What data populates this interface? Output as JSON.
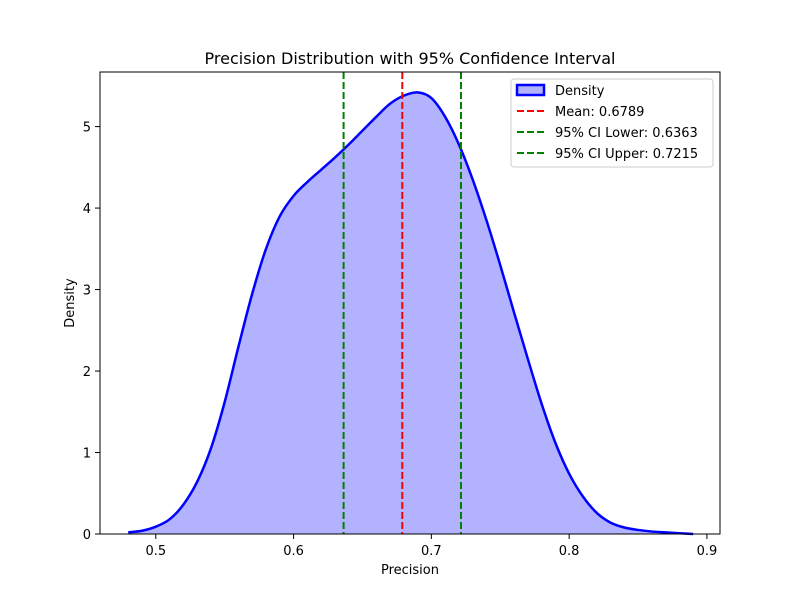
{
  "chart_data": {
    "type": "area",
    "title": "Precision Distribution with 95% Confidence Interval",
    "xlabel": "Precision",
    "ylabel": "Density",
    "xlim": [
      0.4595,
      0.9095
    ],
    "ylim": [
      0,
      5.67
    ],
    "xticks": [
      0.5,
      0.6,
      0.7,
      0.8,
      0.9
    ],
    "xtick_labels": [
      "0.5",
      "0.6",
      "0.7",
      "0.8",
      "0.9"
    ],
    "yticks": [
      0,
      1,
      2,
      3,
      4,
      5
    ],
    "ytick_labels": [
      "0",
      "1",
      "2",
      "3",
      "4",
      "5"
    ],
    "grid": false,
    "legend_position": "upper right",
    "density": {
      "name": "Density",
      "line_color": "#0000ff",
      "fill_color": "#b2b2ff",
      "x": [
        0.48,
        0.49,
        0.5,
        0.51,
        0.52,
        0.53,
        0.54,
        0.55,
        0.56,
        0.57,
        0.58,
        0.59,
        0.6,
        0.61,
        0.62,
        0.63,
        0.64,
        0.65,
        0.66,
        0.67,
        0.68,
        0.69,
        0.7,
        0.71,
        0.72,
        0.73,
        0.74,
        0.75,
        0.76,
        0.77,
        0.78,
        0.79,
        0.8,
        0.81,
        0.82,
        0.83,
        0.84,
        0.85,
        0.86,
        0.87,
        0.88,
        0.89
      ],
      "y": [
        0.02,
        0.04,
        0.09,
        0.18,
        0.36,
        0.64,
        1.05,
        1.62,
        2.3,
        2.95,
        3.5,
        3.9,
        4.15,
        4.32,
        4.47,
        4.62,
        4.78,
        4.95,
        5.12,
        5.28,
        5.38,
        5.42,
        5.35,
        5.12,
        4.78,
        4.35,
        3.85,
        3.3,
        2.72,
        2.15,
        1.6,
        1.12,
        0.74,
        0.46,
        0.26,
        0.14,
        0.08,
        0.05,
        0.03,
        0.02,
        0.01,
        0.0
      ]
    },
    "vlines": [
      {
        "name": "Mean",
        "label": "Mean: 0.6789",
        "x": 0.6789,
        "color": "#ff0000"
      },
      {
        "name": "ci-lower",
        "label": "95% CI Lower: 0.6363",
        "x": 0.6363,
        "color": "#008000"
      },
      {
        "name": "ci-upper",
        "label": "95% CI Upper: 0.7215",
        "x": 0.7215,
        "color": "#008000"
      }
    ]
  }
}
